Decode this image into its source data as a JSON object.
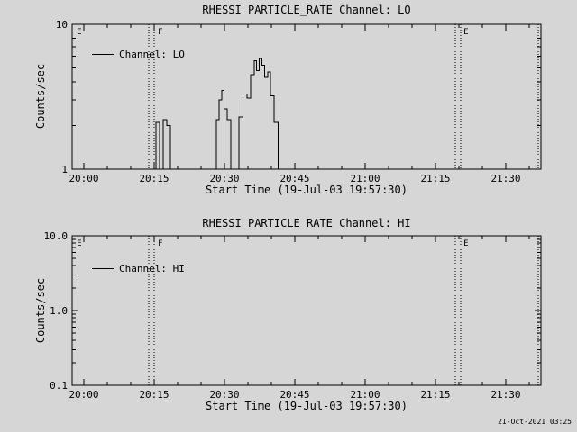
{
  "background_color": "#d6d6d6",
  "line_color": "#000000",
  "footer": {
    "timestamp": "21-Oct-2021 03:25"
  },
  "chart_data": [
    {
      "type": "line",
      "title": "RHESSI PARTICLE_RATE Channel: LO",
      "xlabel": "Start Time (19-Jul-03 19:57:30)",
      "ylabel": "Counts/sec",
      "legend": "Channel: LO",
      "scale": "log",
      "ylim": [
        1,
        10
      ],
      "ylog": {
        "min_exp": 0,
        "max_exp": 1,
        "labels": [
          "1",
          "10"
        ]
      },
      "xlim": [
        0,
        100
      ],
      "x_unit": "minutes after 19:57:30",
      "x_minor_step": 5,
      "xticks": [
        {
          "t": 2.5,
          "label": "20:00"
        },
        {
          "t": 17.5,
          "label": "20:15"
        },
        {
          "t": 32.5,
          "label": "20:30"
        },
        {
          "t": 47.5,
          "label": "20:45"
        },
        {
          "t": 62.5,
          "label": "21:00"
        },
        {
          "t": 77.5,
          "label": "21:15"
        },
        {
          "t": 92.5,
          "label": "21:30"
        }
      ],
      "flags": [
        {
          "t": 0.8,
          "label": "E"
        },
        {
          "t": 18.1,
          "label": "F"
        },
        {
          "t": 83.3,
          "label": "E"
        }
      ],
      "vlines": [
        16.3,
        17.5,
        81.7,
        82.9,
        99.4
      ],
      "series": [
        {
          "name": "Channel: LO",
          "step_points": [
            [
              0,
              1
            ],
            [
              17.9,
              2.1
            ],
            [
              18.7,
              1
            ],
            [
              19.4,
              2.2
            ],
            [
              20.2,
              2.0
            ],
            [
              21.0,
              1
            ],
            [
              30.8,
              2.2
            ],
            [
              31.3,
              3.0
            ],
            [
              31.9,
              3.5
            ],
            [
              32.4,
              2.6
            ],
            [
              33.1,
              2.2
            ],
            [
              33.8,
              1
            ],
            [
              35.6,
              2.3
            ],
            [
              36.4,
              3.3
            ],
            [
              37.3,
              3.1
            ],
            [
              38.1,
              4.5
            ],
            [
              38.8,
              5.6
            ],
            [
              39.3,
              4.8
            ],
            [
              39.9,
              5.8
            ],
            [
              40.5,
              5.2
            ],
            [
              41.1,
              4.3
            ],
            [
              41.7,
              4.7
            ],
            [
              42.3,
              3.2
            ],
            [
              43.1,
              2.1
            ],
            [
              43.9,
              1
            ],
            [
              100,
              1
            ]
          ]
        }
      ]
    },
    {
      "type": "line",
      "title": "RHESSI PARTICLE_RATE Channel: HI",
      "xlabel": "Start Time (19-Jul-03 19:57:30)",
      "ylabel": "Counts/sec",
      "legend": "Channel: HI",
      "scale": "log",
      "ylim": [
        0.1,
        10
      ],
      "ylog": {
        "min_exp": -1,
        "max_exp": 1,
        "labels": [
          "0.1",
          "1.0",
          "10.0"
        ]
      },
      "xlim": [
        0,
        100
      ],
      "x_unit": "minutes after 19:57:30",
      "x_minor_step": 5,
      "xticks": [
        {
          "t": 2.5,
          "label": "20:00"
        },
        {
          "t": 17.5,
          "label": "20:15"
        },
        {
          "t": 32.5,
          "label": "20:30"
        },
        {
          "t": 47.5,
          "label": "20:45"
        },
        {
          "t": 62.5,
          "label": "21:00"
        },
        {
          "t": 77.5,
          "label": "21:15"
        },
        {
          "t": 92.5,
          "label": "21:30"
        }
      ],
      "flags": [
        {
          "t": 0.8,
          "label": "E"
        },
        {
          "t": 18.1,
          "label": "F"
        },
        {
          "t": 83.3,
          "label": "E"
        }
      ],
      "vlines": [
        16.3,
        17.5,
        81.7,
        82.9,
        99.4
      ],
      "series": [
        {
          "name": "Channel: HI",
          "step_points": []
        }
      ]
    }
  ]
}
